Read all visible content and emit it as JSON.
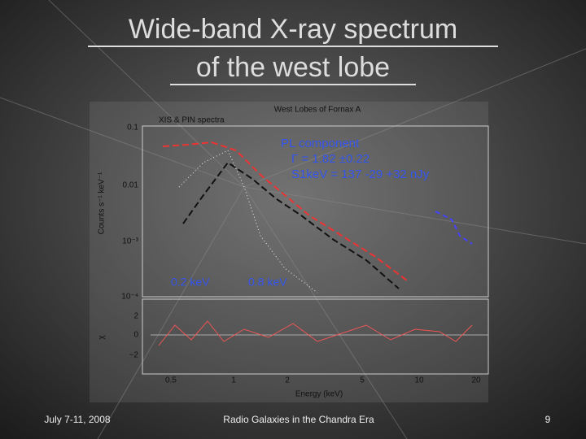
{
  "slide": {
    "title": [
      "Wide-band X-ray spectrum",
      "of the west lobe"
    ],
    "figure": {
      "title": "West Lobes of Fornax A",
      "subtitle": "XIS & PIN spectra",
      "y_label": "Counts s⁻¹ keV⁻¹",
      "residual_label": "χ",
      "x_label": "Energy (keV)",
      "y_ticks": [
        "0.1",
        "0.01",
        "10⁻³",
        "10⁻⁴"
      ],
      "residual_ticks": [
        "2",
        "0",
        "−2"
      ],
      "x_ticks": [
        "0.5",
        "1",
        "2",
        "5",
        "10",
        "20"
      ],
      "annotations": [
        "PL component",
        "Γ = 1.82 ±0.22",
        "S1keV = 137 -29 +32 nJy",
        "0.2 keV",
        "0.8 keV"
      ]
    },
    "footer": {
      "date": "July 7-11, 2008",
      "event": "Radio Galaxies in the Chandra Era",
      "page": "9"
    }
  }
}
